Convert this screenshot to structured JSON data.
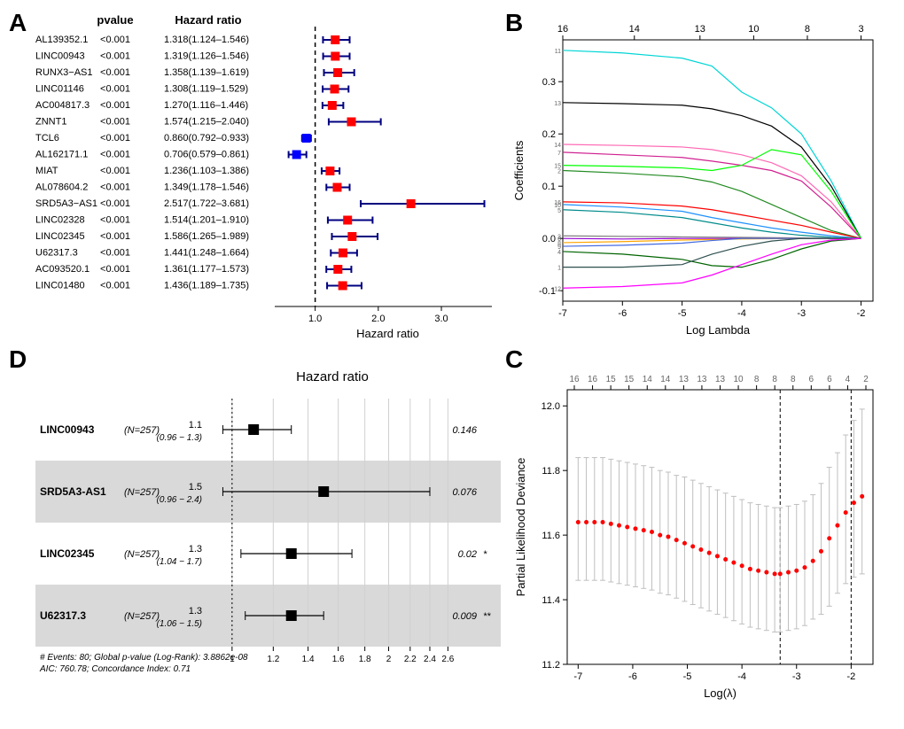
{
  "panelA": {
    "label": "A",
    "headers": {
      "pvalue": "pvalue",
      "hr": "Hazard ratio"
    },
    "axis_label": "Hazard ratio",
    "xlim": [
      0.5,
      3.8
    ],
    "xticks": [
      1.0,
      2.0,
      3.0
    ],
    "xticklabels": [
      "1.0",
      "2.0",
      "3.0"
    ],
    "refline": 1.0,
    "marker_color_risk": "#ff0000",
    "marker_color_protect": "#0000ff",
    "errorbar_color": "#000080",
    "refline_color": "#000000",
    "rows": [
      {
        "name": "AL139352.1",
        "pvalue": "<0.001",
        "hr": "1.318(1.124–1.546)",
        "est": 1.318,
        "lo": 1.124,
        "hi": 1.546,
        "protective": false
      },
      {
        "name": "LINC00943",
        "pvalue": "<0.001",
        "hr": "1.319(1.126–1.546)",
        "est": 1.319,
        "lo": 1.126,
        "hi": 1.546,
        "protective": false
      },
      {
        "name": "RUNX3−AS1",
        "pvalue": "<0.001",
        "hr": "1.358(1.139–1.619)",
        "est": 1.358,
        "lo": 1.139,
        "hi": 1.619,
        "protective": false
      },
      {
        "name": "LINC01146",
        "pvalue": "<0.001",
        "hr": "1.308(1.119–1.529)",
        "est": 1.308,
        "lo": 1.119,
        "hi": 1.529,
        "protective": false
      },
      {
        "name": "AC004817.3",
        "pvalue": "<0.001",
        "hr": "1.270(1.116–1.446)",
        "est": 1.27,
        "lo": 1.116,
        "hi": 1.446,
        "protective": false
      },
      {
        "name": "ZNNT1",
        "pvalue": "<0.001",
        "hr": "1.574(1.215–2.040)",
        "est": 1.574,
        "lo": 1.215,
        "hi": 2.04,
        "protective": false
      },
      {
        "name": "TCL6",
        "pvalue": "<0.001",
        "hr": "0.860(0.792–0.933)",
        "est": 0.86,
        "lo": 0.792,
        "hi": 0.933,
        "protective": true
      },
      {
        "name": "AL162171.1",
        "pvalue": "<0.001",
        "hr": "0.706(0.579–0.861)",
        "est": 0.706,
        "lo": 0.579,
        "hi": 0.861,
        "protective": true
      },
      {
        "name": "MIAT",
        "pvalue": "<0.001",
        "hr": "1.236(1.103–1.386)",
        "est": 1.236,
        "lo": 1.103,
        "hi": 1.386,
        "protective": false
      },
      {
        "name": "AL078604.2",
        "pvalue": "<0.001",
        "hr": "1.349(1.178–1.546)",
        "est": 1.349,
        "lo": 1.178,
        "hi": 1.546,
        "protective": false
      },
      {
        "name": "SRD5A3−AS1",
        "pvalue": "<0.001",
        "hr": "2.517(1.722–3.681)",
        "est": 2.517,
        "lo": 1.722,
        "hi": 3.681,
        "protective": false
      },
      {
        "name": "LINC02328",
        "pvalue": "<0.001",
        "hr": "1.514(1.201–1.910)",
        "est": 1.514,
        "lo": 1.201,
        "hi": 1.91,
        "protective": false
      },
      {
        "name": "LINC02345",
        "pvalue": "<0.001",
        "hr": "1.586(1.265–1.989)",
        "est": 1.586,
        "lo": 1.265,
        "hi": 1.989,
        "protective": false
      },
      {
        "name": "U62317.3",
        "pvalue": "<0.001",
        "hr": "1.441(1.248–1.664)",
        "est": 1.441,
        "lo": 1.248,
        "hi": 1.664,
        "protective": false
      },
      {
        "name": "AC093520.1",
        "pvalue": "<0.001",
        "hr": "1.361(1.177–1.573)",
        "est": 1.361,
        "lo": 1.177,
        "hi": 1.573,
        "protective": false
      },
      {
        "name": "LINC01480",
        "pvalue": "<0.001",
        "hr": "1.436(1.189–1.735)",
        "est": 1.436,
        "lo": 1.189,
        "hi": 1.735,
        "protective": false
      }
    ]
  },
  "panelB": {
    "label": "B",
    "xlabel": "Log Lambda",
    "ylabel": "Coefficients",
    "xlim": [
      -7,
      -1.8
    ],
    "ylim": [
      -0.12,
      0.38
    ],
    "xticks": [
      -7,
      -6,
      -5,
      -4,
      -3,
      -2
    ],
    "yticks": [
      -0.1,
      0.0,
      0.1,
      0.2,
      0.3
    ],
    "top_ticks": [
      {
        "x": -7,
        "label": "16"
      },
      {
        "x": -5.8,
        "label": "14"
      },
      {
        "x": -4.7,
        "label": "13"
      },
      {
        "x": -3.8,
        "label": "10"
      },
      {
        "x": -2.9,
        "label": "8"
      },
      {
        "x": -2.0,
        "label": "3"
      }
    ],
    "label_fontsize": 12,
    "box_color": "#000000",
    "line_width": 1.2,
    "lines": [
      {
        "color": "#00d5d5",
        "id": "11",
        "pts": [
          [
            -7,
            0.36
          ],
          [
            -6,
            0.355
          ],
          [
            -5,
            0.345
          ],
          [
            -4.5,
            0.33
          ],
          [
            -4,
            0.28
          ],
          [
            -3.5,
            0.25
          ],
          [
            -3,
            0.2
          ],
          [
            -2.5,
            0.11
          ],
          [
            -2,
            0.0
          ]
        ]
      },
      {
        "color": "#000000",
        "id": "13",
        "pts": [
          [
            -7,
            0.26
          ],
          [
            -6,
            0.258
          ],
          [
            -5,
            0.255
          ],
          [
            -4.5,
            0.248
          ],
          [
            -4,
            0.235
          ],
          [
            -3.5,
            0.215
          ],
          [
            -3,
            0.175
          ],
          [
            -2.5,
            0.1
          ],
          [
            -2,
            0.0
          ]
        ]
      },
      {
        "color": "#ff69b4",
        "id": "14",
        "pts": [
          [
            -7,
            0.18
          ],
          [
            -6,
            0.178
          ],
          [
            -5,
            0.175
          ],
          [
            -4.5,
            0.17
          ],
          [
            -4,
            0.16
          ],
          [
            -3.5,
            0.145
          ],
          [
            -3,
            0.12
          ],
          [
            -2.5,
            0.07
          ],
          [
            -2,
            0.0
          ]
        ]
      },
      {
        "color": "#d02090",
        "id": "7",
        "pts": [
          [
            -7,
            0.165
          ],
          [
            -6,
            0.16
          ],
          [
            -5,
            0.155
          ],
          [
            -4.5,
            0.148
          ],
          [
            -4,
            0.14
          ],
          [
            -3.5,
            0.13
          ],
          [
            -3,
            0.11
          ],
          [
            -2.5,
            0.06
          ],
          [
            -2,
            0.0
          ]
        ]
      },
      {
        "color": "#00ff00",
        "id": "15",
        "pts": [
          [
            -7,
            0.14
          ],
          [
            -6,
            0.138
          ],
          [
            -5,
            0.135
          ],
          [
            -4.5,
            0.13
          ],
          [
            -4,
            0.14
          ],
          [
            -3.5,
            0.17
          ],
          [
            -3,
            0.16
          ],
          [
            -2.5,
            0.09
          ],
          [
            -2,
            0.0
          ]
        ]
      },
      {
        "color": "#228b22",
        "id": "2",
        "pts": [
          [
            -7,
            0.13
          ],
          [
            -6,
            0.125
          ],
          [
            -5,
            0.118
          ],
          [
            -4.5,
            0.108
          ],
          [
            -4,
            0.09
          ],
          [
            -3.5,
            0.065
          ],
          [
            -3,
            0.04
          ],
          [
            -2.5,
            0.015
          ],
          [
            -2,
            0.0
          ]
        ]
      },
      {
        "color": "#ff0000",
        "id": "16",
        "pts": [
          [
            -7,
            0.07
          ],
          [
            -6,
            0.068
          ],
          [
            -5,
            0.062
          ],
          [
            -4.5,
            0.055
          ],
          [
            -4,
            0.045
          ],
          [
            -3.5,
            0.035
          ],
          [
            -3,
            0.025
          ],
          [
            -2.5,
            0.012
          ],
          [
            -2,
            0.0
          ]
        ]
      },
      {
        "color": "#1e90ff",
        "id": "10",
        "pts": [
          [
            -7,
            0.065
          ],
          [
            -6,
            0.06
          ],
          [
            -5,
            0.052
          ],
          [
            -4.5,
            0.04
          ],
          [
            -4,
            0.03
          ],
          [
            -3.5,
            0.02
          ],
          [
            -3,
            0.012
          ],
          [
            -2.5,
            0.005
          ],
          [
            -2,
            0.0
          ]
        ]
      },
      {
        "color": "#008b8b",
        "id": "5",
        "pts": [
          [
            -7,
            0.055
          ],
          [
            -6,
            0.05
          ],
          [
            -5,
            0.04
          ],
          [
            -4.5,
            0.03
          ],
          [
            -4,
            0.02
          ],
          [
            -3.5,
            0.012
          ],
          [
            -3,
            0.006
          ],
          [
            -2.5,
            0.002
          ],
          [
            -2,
            0.0
          ]
        ]
      },
      {
        "color": "#808080",
        "id": "3",
        "pts": [
          [
            -7,
            0.005
          ],
          [
            -6,
            0.004
          ],
          [
            -5,
            0.003
          ],
          [
            -4,
            0.002
          ],
          [
            -3,
            0.001
          ],
          [
            -2,
            0.0
          ]
        ]
      },
      {
        "color": "#9400d3",
        "id": "6",
        "pts": [
          [
            -7,
            0.0
          ],
          [
            -6,
            -0.001
          ],
          [
            -5,
            0.0
          ],
          [
            -4,
            0.0
          ],
          [
            -3,
            0.0
          ],
          [
            -2,
            0.0
          ]
        ]
      },
      {
        "color": "#ffa500",
        "id": "8",
        "pts": [
          [
            -7,
            -0.008
          ],
          [
            -6,
            -0.006
          ],
          [
            -5,
            -0.003
          ],
          [
            -4,
            -0.001
          ],
          [
            -3,
            0.0
          ],
          [
            -2,
            0.0
          ]
        ]
      },
      {
        "color": "#4169e1",
        "id": "9",
        "pts": [
          [
            -7,
            -0.015
          ],
          [
            -6,
            -0.013
          ],
          [
            -5,
            -0.009
          ],
          [
            -4.5,
            -0.004
          ],
          [
            -4,
            0.0
          ],
          [
            -3,
            0.0
          ],
          [
            -2,
            0.0
          ]
        ]
      },
      {
        "color": "#006400",
        "id": "4",
        "pts": [
          [
            -7,
            -0.025
          ],
          [
            -6,
            -0.03
          ],
          [
            -5,
            -0.04
          ],
          [
            -4.5,
            -0.052
          ],
          [
            -4,
            -0.055
          ],
          [
            -3.5,
            -0.04
          ],
          [
            -3,
            -0.02
          ],
          [
            -2.5,
            -0.005
          ],
          [
            -2,
            0.0
          ]
        ]
      },
      {
        "color": "#2f4f4f",
        "id": "1",
        "pts": [
          [
            -7,
            -0.055
          ],
          [
            -6,
            -0.055
          ],
          [
            -5,
            -0.05
          ],
          [
            -4.5,
            -0.03
          ],
          [
            -4,
            -0.015
          ],
          [
            -3.5,
            -0.005
          ],
          [
            -3,
            0.0
          ],
          [
            -2.5,
            0.0
          ],
          [
            -2,
            0.0
          ]
        ]
      },
      {
        "color": "#ff00ff",
        "id": "12",
        "pts": [
          [
            -7,
            -0.095
          ],
          [
            -6,
            -0.092
          ],
          [
            -5,
            -0.085
          ],
          [
            -4.5,
            -0.07
          ],
          [
            -4,
            -0.05
          ],
          [
            -3.5,
            -0.03
          ],
          [
            -3,
            -0.012
          ],
          [
            -2.5,
            -0.003
          ],
          [
            -2,
            0.0
          ]
        ]
      }
    ]
  },
  "panelC": {
    "label": "C",
    "xlabel": "Log(λ)",
    "ylabel": "Partial Likelihood Deviance",
    "xlim": [
      -7.2,
      -1.6
    ],
    "ylim": [
      11.2,
      12.05
    ],
    "xticks": [
      -7,
      -6,
      -5,
      -4,
      -3,
      -2
    ],
    "yticks": [
      11.2,
      11.4,
      11.6,
      11.8,
      12.0
    ],
    "top_labels": [
      "16",
      "16",
      "15",
      "15",
      "14",
      "14",
      "13",
      "13",
      "13",
      "10",
      "8",
      "8",
      "8",
      "6",
      "6",
      "4",
      "2"
    ],
    "vlines": [
      -3.3,
      -2.0
    ],
    "point_color": "#ff0000",
    "error_color": "#bfbfbf",
    "points": [
      {
        "x": -7.0,
        "y": 11.64,
        "lo": 11.46,
        "hi": 11.84
      },
      {
        "x": -6.85,
        "y": 11.64,
        "lo": 11.46,
        "hi": 11.84
      },
      {
        "x": -6.7,
        "y": 11.64,
        "lo": 11.46,
        "hi": 11.84
      },
      {
        "x": -6.55,
        "y": 11.64,
        "lo": 11.46,
        "hi": 11.84
      },
      {
        "x": -6.4,
        "y": 11.635,
        "lo": 11.455,
        "hi": 11.835
      },
      {
        "x": -6.25,
        "y": 11.63,
        "lo": 11.45,
        "hi": 11.83
      },
      {
        "x": -6.1,
        "y": 11.625,
        "lo": 11.445,
        "hi": 11.825
      },
      {
        "x": -5.95,
        "y": 11.62,
        "lo": 11.44,
        "hi": 11.82
      },
      {
        "x": -5.8,
        "y": 11.615,
        "lo": 11.435,
        "hi": 11.815
      },
      {
        "x": -5.65,
        "y": 11.61,
        "lo": 11.43,
        "hi": 11.81
      },
      {
        "x": -5.5,
        "y": 11.6,
        "lo": 11.42,
        "hi": 11.8
      },
      {
        "x": -5.35,
        "y": 11.595,
        "lo": 11.415,
        "hi": 11.795
      },
      {
        "x": -5.2,
        "y": 11.585,
        "lo": 11.405,
        "hi": 11.785
      },
      {
        "x": -5.05,
        "y": 11.575,
        "lo": 11.395,
        "hi": 11.78
      },
      {
        "x": -4.9,
        "y": 11.565,
        "lo": 11.385,
        "hi": 11.77
      },
      {
        "x": -4.75,
        "y": 11.555,
        "lo": 11.375,
        "hi": 11.76
      },
      {
        "x": -4.6,
        "y": 11.545,
        "lo": 11.365,
        "hi": 11.75
      },
      {
        "x": -4.45,
        "y": 11.535,
        "lo": 11.355,
        "hi": 11.74
      },
      {
        "x": -4.3,
        "y": 11.525,
        "lo": 11.345,
        "hi": 11.73
      },
      {
        "x": -4.15,
        "y": 11.515,
        "lo": 11.335,
        "hi": 11.72
      },
      {
        "x": -4.0,
        "y": 11.505,
        "lo": 11.325,
        "hi": 11.71
      },
      {
        "x": -3.85,
        "y": 11.495,
        "lo": 11.315,
        "hi": 11.7
      },
      {
        "x": -3.7,
        "y": 11.49,
        "lo": 11.31,
        "hi": 11.695
      },
      {
        "x": -3.55,
        "y": 11.485,
        "lo": 11.305,
        "hi": 11.69
      },
      {
        "x": -3.4,
        "y": 11.48,
        "lo": 11.3,
        "hi": 11.685
      },
      {
        "x": -3.3,
        "y": 11.48,
        "lo": 11.3,
        "hi": 11.685
      },
      {
        "x": -3.15,
        "y": 11.485,
        "lo": 11.305,
        "hi": 11.69
      },
      {
        "x": -3.0,
        "y": 11.49,
        "lo": 11.31,
        "hi": 11.695
      },
      {
        "x": -2.85,
        "y": 11.5,
        "lo": 11.32,
        "hi": 11.705
      },
      {
        "x": -2.7,
        "y": 11.52,
        "lo": 11.34,
        "hi": 11.725
      },
      {
        "x": -2.55,
        "y": 11.55,
        "lo": 11.355,
        "hi": 11.76
      },
      {
        "x": -2.4,
        "y": 11.59,
        "lo": 11.38,
        "hi": 11.81
      },
      {
        "x": -2.25,
        "y": 11.63,
        "lo": 11.42,
        "hi": 11.855
      },
      {
        "x": -2.1,
        "y": 11.67,
        "lo": 11.45,
        "hi": 11.91
      },
      {
        "x": -1.95,
        "y": 11.7,
        "lo": 11.47,
        "hi": 11.955
      },
      {
        "x": -1.8,
        "y": 11.72,
        "lo": 11.48,
        "hi": 11.99
      }
    ]
  },
  "panelD": {
    "label": "D",
    "title": "Hazard ratio",
    "xlim": [
      0.9,
      2.7
    ],
    "xticks": [
      1,
      1.2,
      1.4,
      1.6,
      1.8,
      2,
      2.2,
      2.4,
      2.6
    ],
    "refline": 1.0,
    "grid_color": "#d0d0d0",
    "band_color": "#d9d9d9",
    "marker_color": "#000000",
    "footer_line1": "# Events: 80; Global p-value (Log-Rank): 3.8862e-08",
    "footer_line2": "AIC: 760.78; Concordance Index: 0.71",
    "rows": [
      {
        "name": "LINC00943",
        "n": "(N=257)",
        "est": "1.1",
        "ci": "(0.96 − 1.3)",
        "p": "0.146",
        "sig": "",
        "pt": 1.1,
        "lo": 0.96,
        "hi": 1.3,
        "shade": false
      },
      {
        "name": "SRD5A3-AS1",
        "n": "(N=257)",
        "est": "1.5",
        "ci": "(0.96 − 2.4)",
        "p": "0.076",
        "sig": "",
        "pt": 1.5,
        "lo": 0.96,
        "hi": 2.4,
        "shade": true
      },
      {
        "name": "LINC02345",
        "n": "(N=257)",
        "est": "1.3",
        "ci": "(1.04 − 1.7)",
        "p": "0.02",
        "sig": "*",
        "pt": 1.3,
        "lo": 1.04,
        "hi": 1.7,
        "shade": false
      },
      {
        "name": "U62317.3",
        "n": "(N=257)",
        "est": "1.3",
        "ci": "(1.06 − 1.5)",
        "p": "0.009",
        "sig": "**",
        "pt": 1.3,
        "lo": 1.06,
        "hi": 1.5,
        "shade": true
      }
    ]
  }
}
